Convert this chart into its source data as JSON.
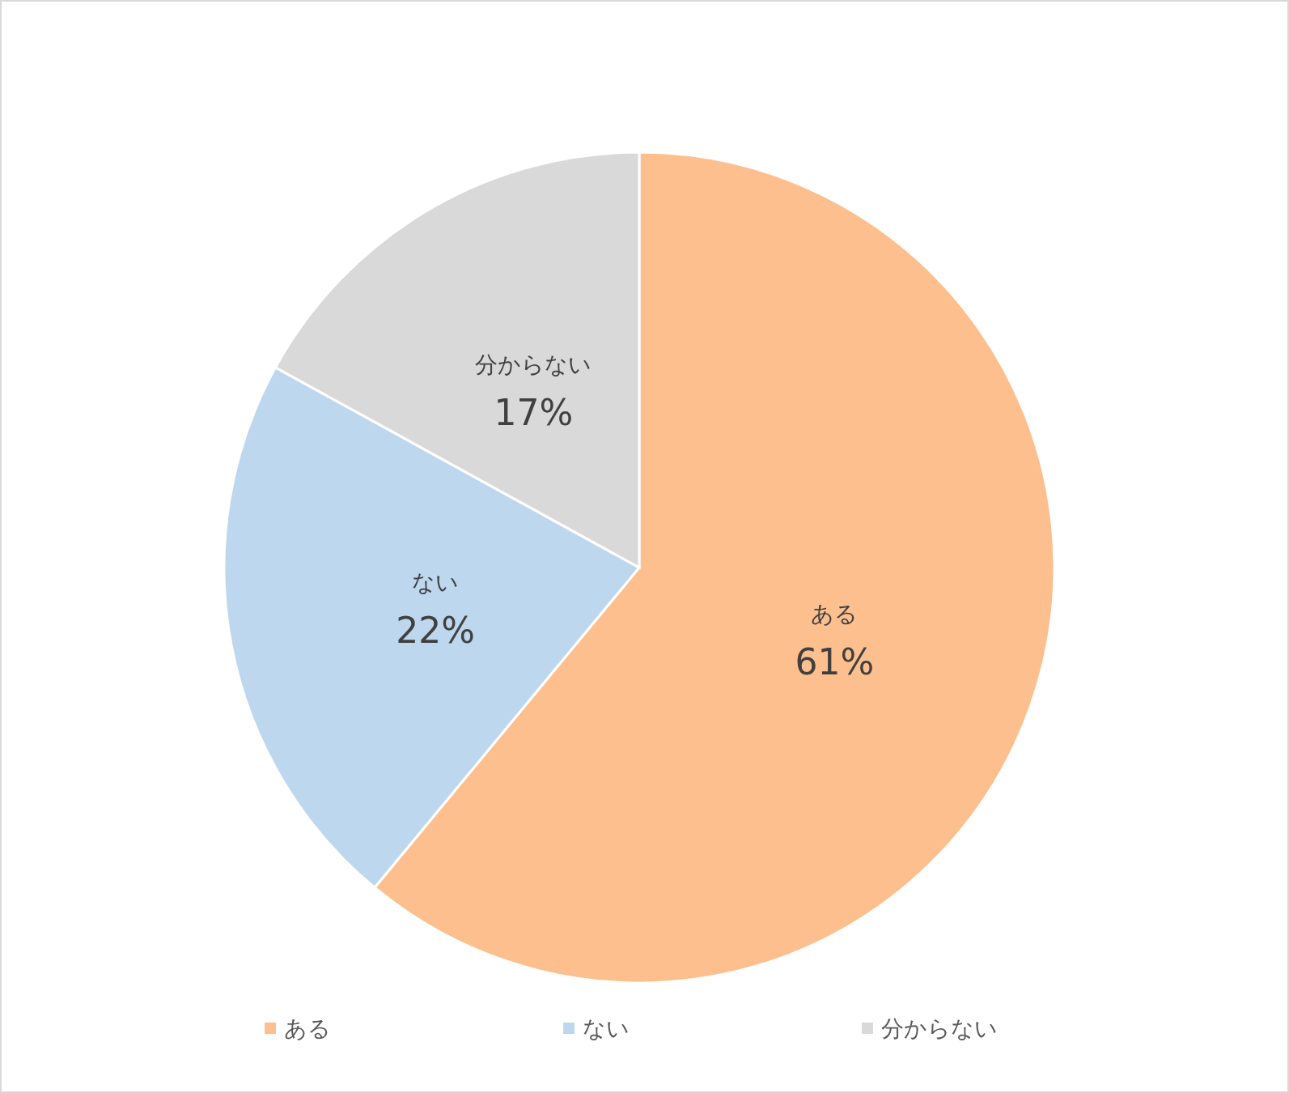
{
  "chart_data": {
    "type": "pie",
    "categories": [
      "ある",
      "ない",
      "分からない"
    ],
    "values": [
      61,
      22,
      17
    ],
    "colors": [
      "#fdbf8e",
      "#bdd7ee",
      "#d9d9d9"
    ],
    "value_labels": [
      "61%",
      "22%",
      "17%"
    ],
    "legend": "bottom"
  }
}
